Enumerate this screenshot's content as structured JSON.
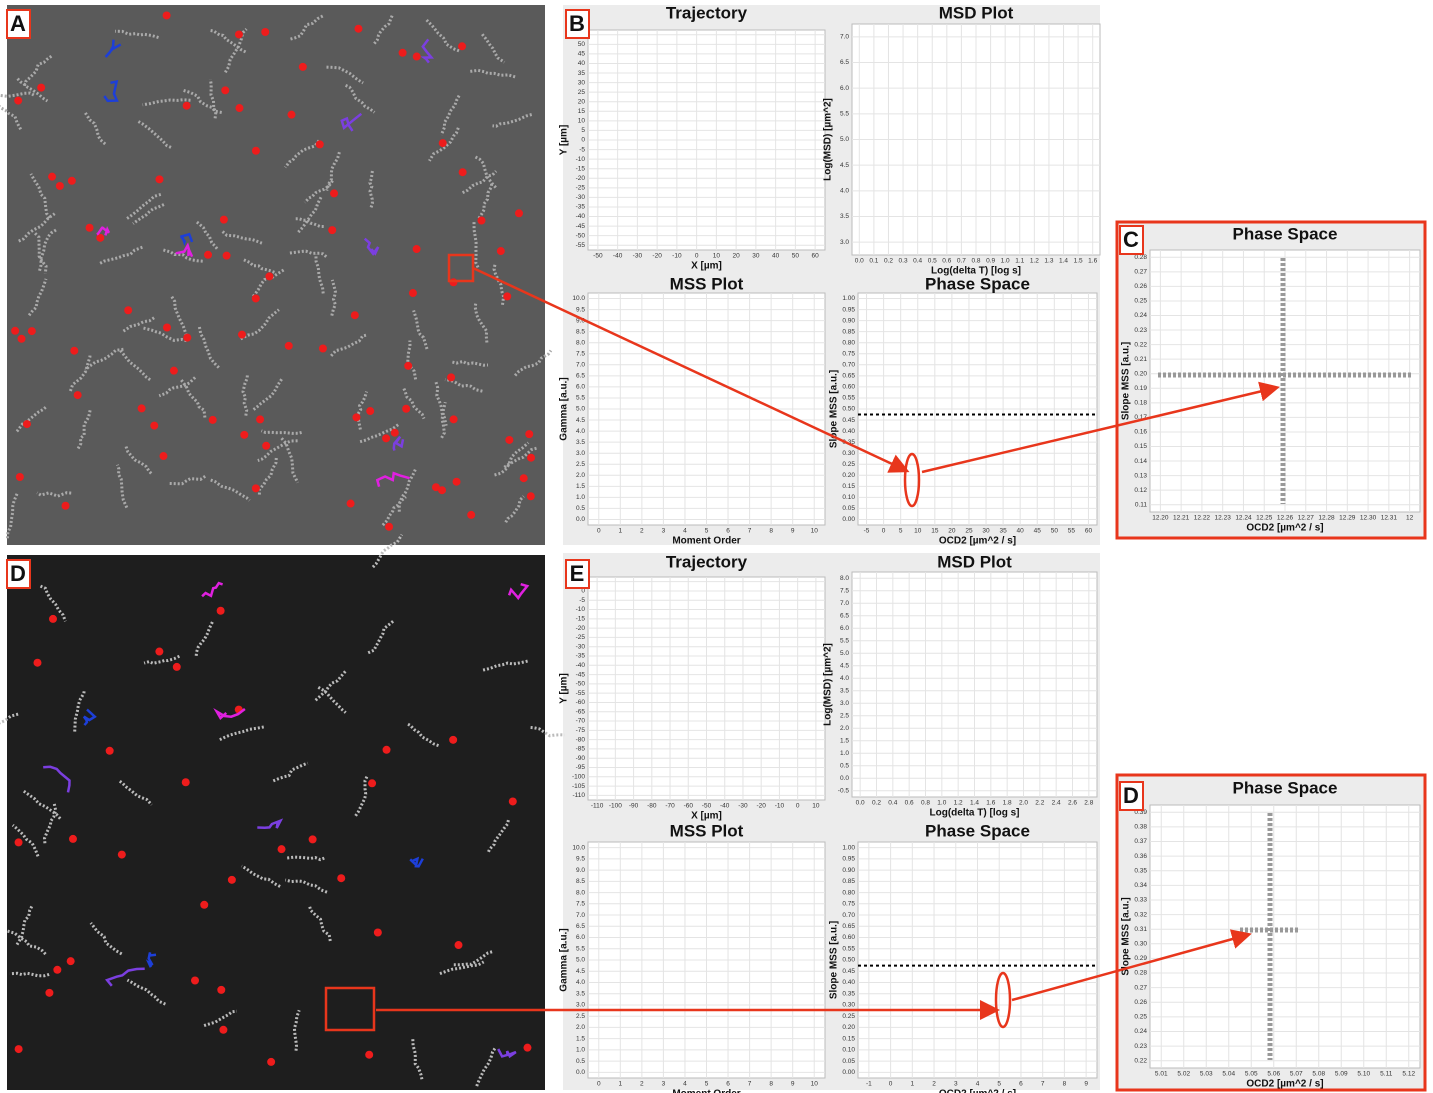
{
  "panels": [
    "A",
    "B",
    "C",
    "D",
    "E",
    "D"
  ],
  "plots": [
    {
      "title": "Trajectory",
      "xlabel": "X [µm]",
      "ylabel": "Y [µm]",
      "xticks": [
        "-50",
        "-40",
        "-30",
        "-20",
        "-10",
        "0",
        "10",
        "20",
        "30",
        "40",
        "50",
        "60"
      ],
      "yticks": [
        "-55",
        "-50",
        "-45",
        "-40",
        "-35",
        "-30",
        "-25",
        "-20",
        "-15",
        "-10",
        "-5",
        "0",
        "5",
        "10",
        "15",
        "20",
        "25",
        "30",
        "35",
        "40",
        "45",
        "50",
        "55"
      ]
    },
    {
      "title": "MSD Plot",
      "xlabel": "Log(delta T) [log s]",
      "ylabel": "Log(MSD) [µm^2]",
      "xticks": [
        "0.0",
        "0.1",
        "0.2",
        "0.3",
        "0.4",
        "0.5",
        "0.6",
        "0.7",
        "0.8",
        "0.9",
        "1.0",
        "1.1",
        "1.2",
        "1.3",
        "1.4",
        "1.5",
        "1.6"
      ],
      "yticks": [
        "3.0",
        "3.5",
        "4.0",
        "4.5",
        "5.0",
        "5.5",
        "6.0",
        "6.5",
        "7.0"
      ]
    },
    {
      "title": "MSS Plot",
      "xlabel": "Moment Order",
      "ylabel": "Gamma [a.u.]",
      "xticks": [
        "0",
        "1",
        "2",
        "3",
        "4",
        "5",
        "6",
        "7",
        "8",
        "9",
        "10"
      ],
      "yticks": [
        "0.0",
        "0.5",
        "1.0",
        "1.5",
        "2.0",
        "2.5",
        "3.0",
        "3.5",
        "4.0",
        "4.5",
        "5.0",
        "5.5",
        "6.0",
        "6.5",
        "7.0",
        "7.5",
        "8.0",
        "8.5",
        "9.0",
        "9.5",
        "10.0"
      ]
    },
    {
      "title": "Phase Space",
      "xlabel": "OCD2 [µm^2 / s]",
      "ylabel": "Slope MSS [a.u.]",
      "xticks": [
        "-5",
        "0",
        "5",
        "10",
        "15",
        "20",
        "25",
        "30",
        "35",
        "40",
        "45",
        "50",
        "55",
        "60"
      ],
      "yticks": [
        "0.00",
        "0.05",
        "0.10",
        "0.15",
        "0.20",
        "0.25",
        "0.30",
        "0.35",
        "0.40",
        "0.45",
        "0.50",
        "0.55",
        "0.60",
        "0.65",
        "0.70",
        "0.75",
        "0.80",
        "0.85",
        "0.90",
        "0.95",
        "1.00"
      ]
    },
    {
      "title": "Phase Space",
      "xlabel": "OCD2 [µm^2 / s]",
      "ylabel": "Slope MSS [a.u.]",
      "xticks": [
        "12.20",
        "12.21",
        "12.22",
        "12.23",
        "12.24",
        "12.25",
        "12.26",
        "12.27",
        "12.28",
        "12.29",
        "12.30",
        "12.31",
        "12"
      ],
      "yticks": [
        "0.11",
        "0.12",
        "0.13",
        "0.14",
        "0.15",
        "0.16",
        "0.17",
        "0.18",
        "0.19",
        "0.20",
        "0.21",
        "0.22",
        "0.23",
        "0.24",
        "0.25",
        "0.26",
        "0.27",
        "0.28"
      ]
    },
    {
      "title": "Trajectory",
      "xlabel": "X [µm]",
      "ylabel": "Y [µm]",
      "xticks": [
        "-110",
        "-100",
        "-90",
        "-80",
        "-70",
        "-60",
        "-50",
        "-40",
        "-30",
        "-20",
        "-10",
        "0",
        "10"
      ],
      "yticks": [
        "-110",
        "-105",
        "-100",
        "-95",
        "-90",
        "-85",
        "-80",
        "-75",
        "-70",
        "-65",
        "-60",
        "-55",
        "-50",
        "-45",
        "-40",
        "-35",
        "-30",
        "-25",
        "-20",
        "-15",
        "-10",
        "-5",
        "0",
        "5"
      ]
    },
    {
      "title": "MSD Plot",
      "xlabel": "Log(delta T) [log s]",
      "ylabel": "Log(MSD) [µm^2]",
      "xticks": [
        "0.0",
        "0.2",
        "0.4",
        "0.6",
        "0.8",
        "1.0",
        "1.2",
        "1.4",
        "1.6",
        "1.8",
        "2.0",
        "2.2",
        "2.4",
        "2.6",
        "2.8"
      ],
      "yticks": [
        "-0.5",
        "0.0",
        "0.5",
        "1.0",
        "1.5",
        "2.0",
        "2.5",
        "3.0",
        "3.5",
        "4.0",
        "4.5",
        "5.0",
        "5.5",
        "6.0",
        "6.5",
        "7.0",
        "7.5",
        "8.0"
      ]
    },
    {
      "title": "MSS Plot",
      "xlabel": "Moment Order",
      "ylabel": "Gamma [a.u.]",
      "xticks": [
        "0",
        "1",
        "2",
        "3",
        "4",
        "5",
        "6",
        "7",
        "8",
        "9",
        "10"
      ],
      "yticks": [
        "0.0",
        "0.5",
        "1.0",
        "1.5",
        "2.0",
        "2.5",
        "3.0",
        "3.5",
        "4.0",
        "4.5",
        "5.0",
        "5.5",
        "6.0",
        "6.5",
        "7.0",
        "7.5",
        "8.0",
        "8.5",
        "9.0",
        "9.5",
        "10.0"
      ]
    },
    {
      "title": "Phase Space",
      "xlabel": "OCD2 [µm^2 / s]",
      "ylabel": "Slope MSS [a.u.]",
      "xticks": [
        "-1",
        "0",
        "1",
        "2",
        "3",
        "4",
        "5",
        "6",
        "7",
        "8",
        "9"
      ],
      "yticks": [
        "0.00",
        "0.05",
        "0.10",
        "0.15",
        "0.20",
        "0.25",
        "0.30",
        "0.35",
        "0.40",
        "0.45",
        "0.50",
        "0.55",
        "0.60",
        "0.65",
        "0.70",
        "0.75",
        "0.80",
        "0.85",
        "0.90",
        "0.95",
        "1.00"
      ]
    },
    {
      "title": "Phase Space",
      "xlabel": "OCD2 [µm^2 / s]",
      "ylabel": "Slope MSS [a.u.]",
      "xticks": [
        "5.01",
        "5.02",
        "5.03",
        "5.04",
        "5.05",
        "5.06",
        "5.07",
        "5.08",
        "5.09",
        "5.10",
        "5.11",
        "5.12"
      ],
      "yticks": [
        "0.22",
        "0.23",
        "0.24",
        "0.25",
        "0.26",
        "0.27",
        "0.28",
        "0.29",
        "0.30",
        "0.31",
        "0.32",
        "0.33",
        "0.34",
        "0.35",
        "0.36",
        "0.37",
        "0.38",
        "0.39"
      ]
    }
  ]
}
